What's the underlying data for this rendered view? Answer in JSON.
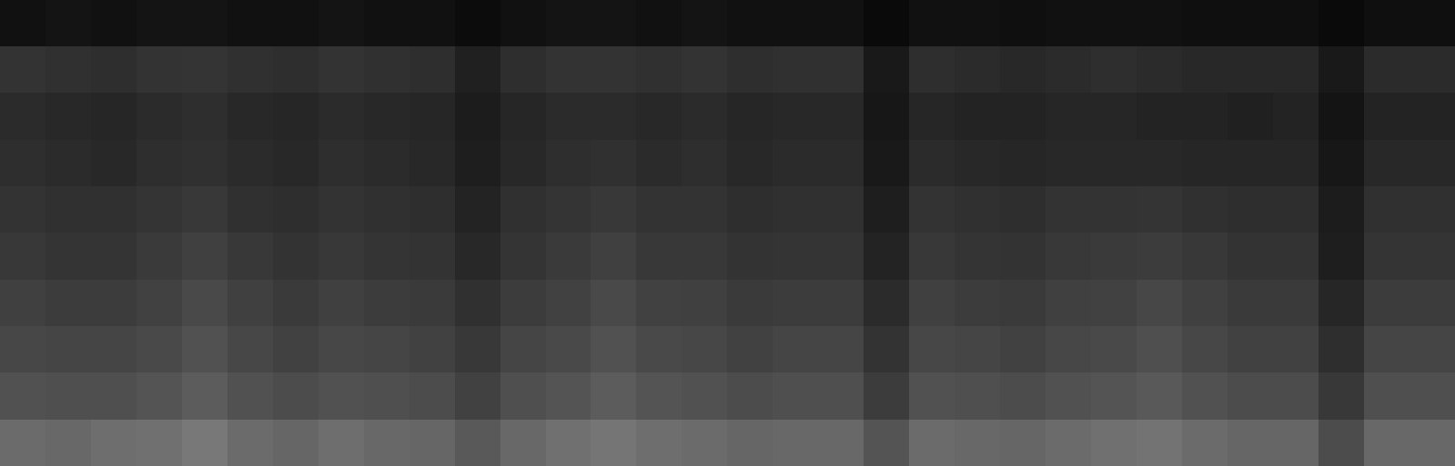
{
  "chart_data": {
    "type": "heatmap",
    "tick_labels": false,
    "color": "gray",
    "color_range": [
      0,
      1
    ],
    "cells": [
      [
        0.07,
        0.08,
        0.07,
        0.08,
        0.08,
        0.07,
        0.07,
        0.08,
        0.07,
        0.07,
        0.05,
        0.07,
        0.08,
        0.08,
        0.07,
        0.08,
        0.07,
        0.07,
        0.07,
        0.04,
        0.07,
        0.07,
        0.06,
        0.07,
        0.07,
        0.07,
        0.06,
        0.06,
        0.06,
        0.04,
        0.06,
        0.06
      ],
      [
        0.2,
        0.19,
        0.18,
        0.2,
        0.21,
        0.19,
        0.18,
        0.2,
        0.19,
        0.18,
        0.13,
        0.18,
        0.2,
        0.2,
        0.19,
        0.2,
        0.18,
        0.19,
        0.19,
        0.1,
        0.18,
        0.17,
        0.16,
        0.17,
        0.18,
        0.17,
        0.16,
        0.16,
        0.16,
        0.1,
        0.17,
        0.17
      ],
      [
        0.17,
        0.16,
        0.15,
        0.17,
        0.18,
        0.16,
        0.15,
        0.17,
        0.16,
        0.15,
        0.11,
        0.15,
        0.17,
        0.17,
        0.16,
        0.17,
        0.15,
        0.16,
        0.16,
        0.09,
        0.15,
        0.14,
        0.14,
        0.15,
        0.15,
        0.14,
        0.14,
        0.13,
        0.14,
        0.08,
        0.14,
        0.14
      ],
      [
        0.18,
        0.17,
        0.16,
        0.18,
        0.19,
        0.17,
        0.16,
        0.18,
        0.17,
        0.16,
        0.12,
        0.16,
        0.18,
        0.19,
        0.17,
        0.18,
        0.16,
        0.17,
        0.17,
        0.1,
        0.17,
        0.16,
        0.15,
        0.16,
        0.16,
        0.16,
        0.15,
        0.15,
        0.15,
        0.09,
        0.16,
        0.16
      ],
      [
        0.2,
        0.19,
        0.19,
        0.21,
        0.22,
        0.19,
        0.18,
        0.2,
        0.19,
        0.18,
        0.14,
        0.19,
        0.21,
        0.22,
        0.2,
        0.2,
        0.18,
        0.19,
        0.19,
        0.12,
        0.2,
        0.19,
        0.18,
        0.2,
        0.2,
        0.21,
        0.19,
        0.18,
        0.18,
        0.11,
        0.19,
        0.19
      ],
      [
        0.22,
        0.21,
        0.21,
        0.23,
        0.25,
        0.22,
        0.2,
        0.22,
        0.21,
        0.2,
        0.16,
        0.21,
        0.23,
        0.25,
        0.22,
        0.22,
        0.2,
        0.21,
        0.21,
        0.14,
        0.22,
        0.21,
        0.2,
        0.22,
        0.23,
        0.24,
        0.22,
        0.2,
        0.2,
        0.12,
        0.21,
        0.21
      ],
      [
        0.25,
        0.24,
        0.24,
        0.26,
        0.29,
        0.25,
        0.23,
        0.25,
        0.24,
        0.23,
        0.19,
        0.24,
        0.26,
        0.29,
        0.26,
        0.25,
        0.23,
        0.24,
        0.24,
        0.17,
        0.25,
        0.24,
        0.23,
        0.25,
        0.26,
        0.28,
        0.25,
        0.23,
        0.23,
        0.15,
        0.24,
        0.24
      ],
      [
        0.28,
        0.27,
        0.27,
        0.29,
        0.32,
        0.28,
        0.26,
        0.28,
        0.27,
        0.26,
        0.22,
        0.27,
        0.29,
        0.32,
        0.29,
        0.28,
        0.26,
        0.27,
        0.27,
        0.2,
        0.28,
        0.27,
        0.26,
        0.28,
        0.29,
        0.31,
        0.28,
        0.26,
        0.26,
        0.18,
        0.27,
        0.27
      ],
      [
        0.32,
        0.31,
        0.31,
        0.33,
        0.36,
        0.32,
        0.3,
        0.32,
        0.31,
        0.3,
        0.26,
        0.31,
        0.33,
        0.36,
        0.33,
        0.32,
        0.3,
        0.31,
        0.31,
        0.24,
        0.32,
        0.31,
        0.3,
        0.32,
        0.33,
        0.35,
        0.32,
        0.3,
        0.3,
        0.22,
        0.31,
        0.31
      ],
      [
        0.42,
        0.41,
        0.43,
        0.44,
        0.47,
        0.42,
        0.4,
        0.43,
        0.41,
        0.4,
        0.35,
        0.41,
        0.44,
        0.46,
        0.43,
        0.42,
        0.4,
        0.41,
        0.41,
        0.33,
        0.42,
        0.41,
        0.4,
        0.42,
        0.44,
        0.45,
        0.42,
        0.4,
        0.4,
        0.3,
        0.41,
        0.41
      ]
    ]
  }
}
